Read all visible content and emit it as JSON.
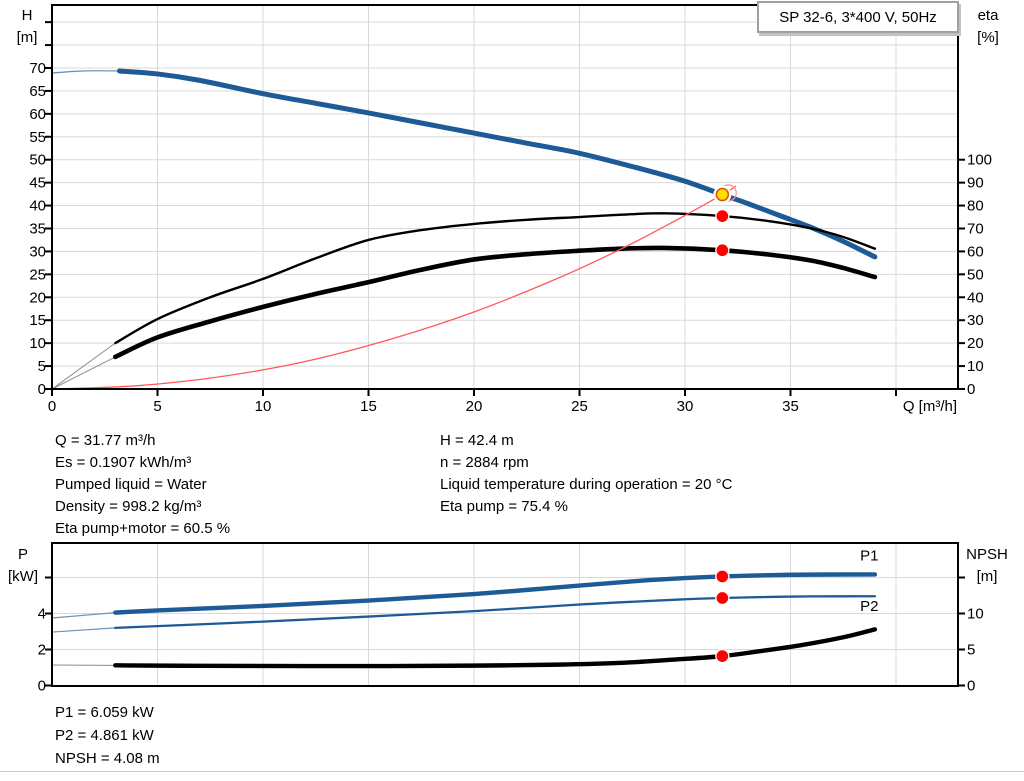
{
  "header": {
    "curve_box_label": "SP 32-6, 3*400 V, 50Hz"
  },
  "info_panel": {
    "left": [
      "Q = 31.77 m³/h",
      "Es = 0.1907 kWh/m³",
      "Pumped liquid = Water",
      "Density = 998.2 kg/m³",
      "Eta pump+motor = 60.5 %"
    ],
    "right": [
      "H = 42.4 m",
      "n = 2884 rpm",
      "Liquid temperature during operation = 20 °C",
      "Eta pump = 75.4 %"
    ]
  },
  "results_panel": {
    "lines": [
      "P1 = 6.059 kW",
      "P2 = 4.861 kW",
      "NPSH = 4.08 m"
    ]
  },
  "colors": {
    "curve_blue": "#1d5a96",
    "curve_blue_thin": "#6d93bd",
    "curve_black": "#000000",
    "curve_gray_thin": "#8c8c8c",
    "system_red": "#ff5a5a",
    "marker_red": "#ff0000",
    "duty_yellow": "#ffe000",
    "duty_ring": "#e05000",
    "grid": "#d9d9d9",
    "frame": "#000000",
    "shadow": "#c2c2c2"
  },
  "chart_data": [
    {
      "type": "line",
      "title": "SP 32-6, 3*400 V, 50Hz",
      "x_axis": {
        "title": "Q [m³/h]",
        "min": 0,
        "max": 42.9,
        "ticks": [
          0,
          5,
          10,
          15,
          20,
          25,
          30,
          35,
          40
        ],
        "tick_labels": [
          "0",
          "5",
          "10",
          "15",
          "20",
          "25",
          "30",
          "35",
          null
        ],
        "gridlines": [
          5,
          10,
          15,
          20,
          25,
          30,
          35,
          40
        ]
      },
      "y_left": {
        "title_lines": [
          "H",
          "[m]"
        ],
        "min": 0,
        "max": 83.8,
        "ticks": [
          0,
          5,
          10,
          15,
          20,
          25,
          30,
          35,
          40,
          45,
          50,
          55,
          60,
          65,
          70,
          75,
          80
        ],
        "tick_labels": [
          "0",
          "5",
          "10",
          "15",
          "20",
          "25",
          "30",
          "35",
          "40",
          "45",
          "50",
          "55",
          "60",
          "65",
          "70",
          null,
          null
        ],
        "gridlines": [
          5,
          10,
          15,
          20,
          25,
          30,
          35,
          40,
          45,
          50,
          55,
          60,
          65,
          70,
          75,
          80
        ]
      },
      "y_right": {
        "title_lines": [
          "eta",
          "[%]"
        ],
        "min": 0,
        "max": 100,
        "ticks": [
          0,
          10,
          20,
          30,
          40,
          50,
          60,
          70,
          80,
          90,
          100
        ],
        "tick_labels": [
          "0",
          "10",
          "20",
          "30",
          "40",
          "50",
          "60",
          "70",
          "80",
          "90",
          "100"
        ]
      },
      "series": [
        {
          "name": "head-curve",
          "axis": "left",
          "color": "#1d5a96",
          "width": 5,
          "lead_in": {
            "color": "#6d93bd",
            "width": 1.3,
            "points": [
              [
                0,
                68.9
              ],
              [
                1,
                69.25
              ],
              [
                2,
                69.4
              ],
              [
                3.2,
                69.35
              ]
            ]
          },
          "points": [
            [
              3.2,
              69.35
            ],
            [
              5,
              68.7
            ],
            [
              7,
              67.3
            ],
            [
              10,
              64.4
            ],
            [
              12.5,
              62.3
            ],
            [
              15,
              60.2
            ],
            [
              17.5,
              58.0
            ],
            [
              20,
              55.8
            ],
            [
              22.5,
              53.6
            ],
            [
              25,
              51.4
            ],
            [
              28,
              47.9
            ],
            [
              30,
              45.3
            ],
            [
              31.77,
              42.4
            ],
            [
              33,
              40.4
            ],
            [
              34.5,
              37.8
            ],
            [
              36,
              35.2
            ],
            [
              37.5,
              32.2
            ],
            [
              39,
              28.8
            ]
          ]
        },
        {
          "name": "eta-pump-curve",
          "axis": "right",
          "color": "#000000",
          "width": 2.4,
          "lead_in": {
            "color": "#8c8c8c",
            "width": 1,
            "points": [
              [
                0,
                0
              ],
              [
                3,
                20
              ]
            ]
          },
          "points": [
            [
              3,
              20
            ],
            [
              5,
              30.5
            ],
            [
              7.5,
              40
            ],
            [
              10,
              48
            ],
            [
              12.5,
              57
            ],
            [
              15,
              65
            ],
            [
              17.5,
              69.3
            ],
            [
              20,
              72
            ],
            [
              22.5,
              73.8
            ],
            [
              25,
              75
            ],
            [
              27,
              76
            ],
            [
              29,
              76.6
            ],
            [
              31.77,
              75.4
            ],
            [
              34,
              73.2
            ],
            [
              36,
              70
            ],
            [
              37.5,
              66.3
            ],
            [
              39,
              61.2
            ]
          ]
        },
        {
          "name": "eta-pump-motor-curve",
          "axis": "right",
          "color": "#000000",
          "width": 4.6,
          "lead_in": {
            "color": "#8c8c8c",
            "width": 1,
            "points": [
              [
                0,
                0
              ],
              [
                3,
                14
              ]
            ]
          },
          "points": [
            [
              3,
              14
            ],
            [
              5,
              22.5
            ],
            [
              7.5,
              29.5
            ],
            [
              10,
              35.8
            ],
            [
              12.5,
              41.5
            ],
            [
              15,
              46.6
            ],
            [
              17.5,
              52
            ],
            [
              20,
              56.5
            ],
            [
              22.5,
              58.8
            ],
            [
              25,
              60.3
            ],
            [
              27,
              61.2
            ],
            [
              29,
              61.5
            ],
            [
              31.77,
              60.5
            ],
            [
              34,
              58.6
            ],
            [
              36,
              56
            ],
            [
              37.5,
              52.8
            ],
            [
              39,
              48.8
            ]
          ]
        },
        {
          "name": "system-curve",
          "axis": "left",
          "color": "#ff5a5a",
          "width": 1.3,
          "points": [
            [
              0,
              0
            ],
            [
              4,
              0.7
            ],
            [
              8,
              2.7
            ],
            [
              12,
              6.0
            ],
            [
              16,
              10.8
            ],
            [
              20,
              16.8
            ],
            [
              24,
              24.2
            ],
            [
              27,
              30.6
            ],
            [
              29.5,
              36.6
            ],
            [
              31.77,
              42.4
            ],
            [
              32.4,
              44.2
            ]
          ]
        }
      ],
      "markers": [
        {
          "name": "system-intersection-ring",
          "axis": "left",
          "q": 32.05,
          "v": 42.75,
          "style": "ring",
          "color": "#ff9090",
          "r": 8
        },
        {
          "name": "eta-pump-duty-dot",
          "axis": "right",
          "q": 31.77,
          "v": 75.4,
          "style": "dot",
          "color": "#ff0000",
          "r": 6.5
        },
        {
          "name": "eta-pump-motor-duty-dot",
          "axis": "right",
          "q": 31.77,
          "v": 60.5,
          "style": "dot",
          "color": "#ff0000",
          "r": 6.5
        },
        {
          "name": "duty-point",
          "axis": "left",
          "q": 31.77,
          "v": 42.4,
          "style": "duty",
          "fill": "#ffe000",
          "ring": "#e05000",
          "r": 6
        }
      ],
      "series_labels": []
    },
    {
      "type": "line",
      "title": "",
      "x_axis": {
        "title": "",
        "min": 0,
        "max": 42.9,
        "ticks": [],
        "tick_labels": [],
        "gridlines": [
          5,
          10,
          15,
          20,
          25,
          30,
          35,
          40
        ]
      },
      "y_left": {
        "title_lines": [
          "P",
          "[kW]"
        ],
        "min": 0,
        "max": 7.9,
        "ticks": [
          0,
          2,
          4,
          6
        ],
        "tick_labels": [
          "0",
          "2",
          "4",
          null
        ],
        "gridlines": [
          2,
          4,
          6
        ]
      },
      "y_right": {
        "title_lines": [
          "NPSH",
          "[m]"
        ],
        "min": 0,
        "max": 19.8,
        "ticks": [
          0,
          5,
          10,
          15
        ],
        "tick_labels": [
          "0",
          "5",
          "10",
          null
        ]
      },
      "series": [
        {
          "name": "p1-curve",
          "axis": "left",
          "color": "#1d5a96",
          "width": 4.4,
          "lead_in": {
            "color": "#6d93bd",
            "width": 1.2,
            "points": [
              [
                0,
                3.75
              ],
              [
                3,
                4.05
              ]
            ]
          },
          "points": [
            [
              3,
              4.05
            ],
            [
              5,
              4.17
            ],
            [
              10,
              4.42
            ],
            [
              15,
              4.72
            ],
            [
              20,
              5.08
            ],
            [
              25,
              5.55
            ],
            [
              28,
              5.83
            ],
            [
              30,
              5.97
            ],
            [
              31.77,
              6.06
            ],
            [
              34,
              6.13
            ],
            [
              36,
              6.16
            ],
            [
              39,
              6.17
            ]
          ]
        },
        {
          "name": "p2-curve",
          "axis": "left",
          "color": "#1d5a96",
          "width": 2.3,
          "lead_in": {
            "color": "#6d93bd",
            "width": 1.2,
            "points": [
              [
                0,
                2.97
              ],
              [
                3,
                3.2
              ]
            ]
          },
          "points": [
            [
              3,
              3.2
            ],
            [
              5,
              3.3
            ],
            [
              10,
              3.55
            ],
            [
              15,
              3.83
            ],
            [
              20,
              4.13
            ],
            [
              25,
              4.5
            ],
            [
              28,
              4.68
            ],
            [
              30,
              4.79
            ],
            [
              31.77,
              4.86
            ],
            [
              34,
              4.92
            ],
            [
              36,
              4.95
            ],
            [
              39,
              4.96
            ]
          ]
        },
        {
          "name": "npsh-curve",
          "axis": "right",
          "color": "#000000",
          "width": 4.4,
          "lead_in": {
            "color": "#8c8c8c",
            "width": 1,
            "points": [
              [
                0,
                2.85
              ],
              [
                3,
                2.8
              ]
            ]
          },
          "points": [
            [
              3,
              2.8
            ],
            [
              7,
              2.73
            ],
            [
              12,
              2.7
            ],
            [
              16,
              2.7
            ],
            [
              20,
              2.76
            ],
            [
              24,
              2.9
            ],
            [
              27,
              3.15
            ],
            [
              29.5,
              3.6
            ],
            [
              31.77,
              4.08
            ],
            [
              33.5,
              4.75
            ],
            [
              35.5,
              5.6
            ],
            [
              37.5,
              6.7
            ],
            [
              39,
              7.8
            ]
          ]
        }
      ],
      "markers": [
        {
          "name": "p1-duty-dot",
          "axis": "left",
          "q": 31.77,
          "v": 6.059,
          "style": "dot",
          "color": "#ff0000",
          "r": 6.5
        },
        {
          "name": "p2-duty-dot",
          "axis": "left",
          "q": 31.77,
          "v": 4.861,
          "style": "dot",
          "color": "#ff0000",
          "r": 6.5
        },
        {
          "name": "npsh-duty-dot",
          "axis": "right",
          "q": 31.77,
          "v": 4.08,
          "style": "dot",
          "color": "#ff0000",
          "r": 6.5
        }
      ],
      "series_labels": [
        {
          "text": "P1",
          "q": 38.3,
          "v": 6.95,
          "color": "#1d5a96"
        },
        {
          "text": "P2",
          "q": 38.3,
          "v": 4.15,
          "color": "#1d5a96"
        }
      ]
    }
  ]
}
